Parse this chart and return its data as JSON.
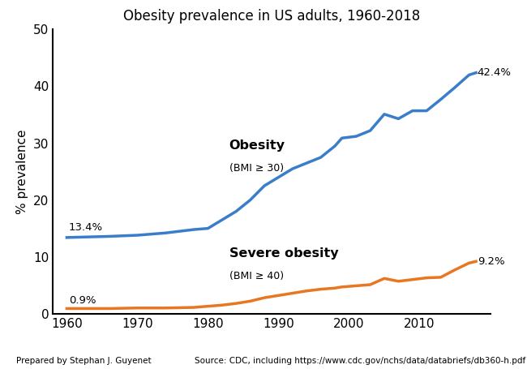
{
  "title": "Obesity prevalence in US adults, 1960-2018",
  "ylabel": "% prevalence",
  "xlim": [
    1958,
    2020
  ],
  "ylim": [
    0,
    50
  ],
  "yticks": [
    0,
    10,
    20,
    30,
    40,
    50
  ],
  "xticks": [
    1960,
    1970,
    1980,
    1990,
    2000,
    2010
  ],
  "obesity_years": [
    1960,
    1963,
    1966,
    1970,
    1974,
    1978,
    1980,
    1982,
    1984,
    1986,
    1988,
    1990,
    1992,
    1994,
    1996,
    1998,
    1999,
    2001,
    2003,
    2005,
    2007,
    2009,
    2011,
    2013,
    2015,
    2017,
    2018
  ],
  "obesity_values": [
    13.4,
    13.5,
    13.6,
    13.8,
    14.2,
    14.8,
    15.0,
    16.5,
    18.0,
    20.0,
    22.5,
    24.0,
    25.5,
    26.5,
    27.5,
    29.5,
    30.9,
    31.2,
    32.2,
    35.1,
    34.3,
    35.7,
    35.7,
    37.7,
    39.8,
    42.0,
    42.4
  ],
  "severe_years": [
    1960,
    1963,
    1966,
    1970,
    1974,
    1978,
    1980,
    1982,
    1984,
    1986,
    1988,
    1990,
    1992,
    1994,
    1996,
    1998,
    1999,
    2001,
    2003,
    2005,
    2007,
    2009,
    2011,
    2013,
    2015,
    2017,
    2018
  ],
  "severe_values": [
    0.9,
    0.9,
    0.9,
    1.0,
    1.0,
    1.1,
    1.3,
    1.5,
    1.8,
    2.2,
    2.8,
    3.2,
    3.6,
    4.0,
    4.3,
    4.5,
    4.7,
    4.9,
    5.1,
    6.2,
    5.7,
    6.0,
    6.3,
    6.4,
    7.7,
    8.9,
    9.2
  ],
  "obesity_color": "#3a7dc9",
  "severe_color": "#e87722",
  "obesity_label": "Obesity",
  "obesity_sublabel": "(BMI ≥ 30)",
  "severe_label": "Severe obesity",
  "severe_sublabel": "(BMI ≥ 40)",
  "start_annotation_obesity": "13.4%",
  "end_annotation_obesity": "42.4%",
  "start_annotation_severe": "0.9%",
  "end_annotation_severe": "9.2%",
  "footer_left": "Prepared by Stephan J. Guyenet",
  "footer_right": "Source: CDC, including https://www.cdc.gov/nchs/data/databriefs/db360-h.pdf",
  "background_color": "#ffffff",
  "line_width": 2.5
}
